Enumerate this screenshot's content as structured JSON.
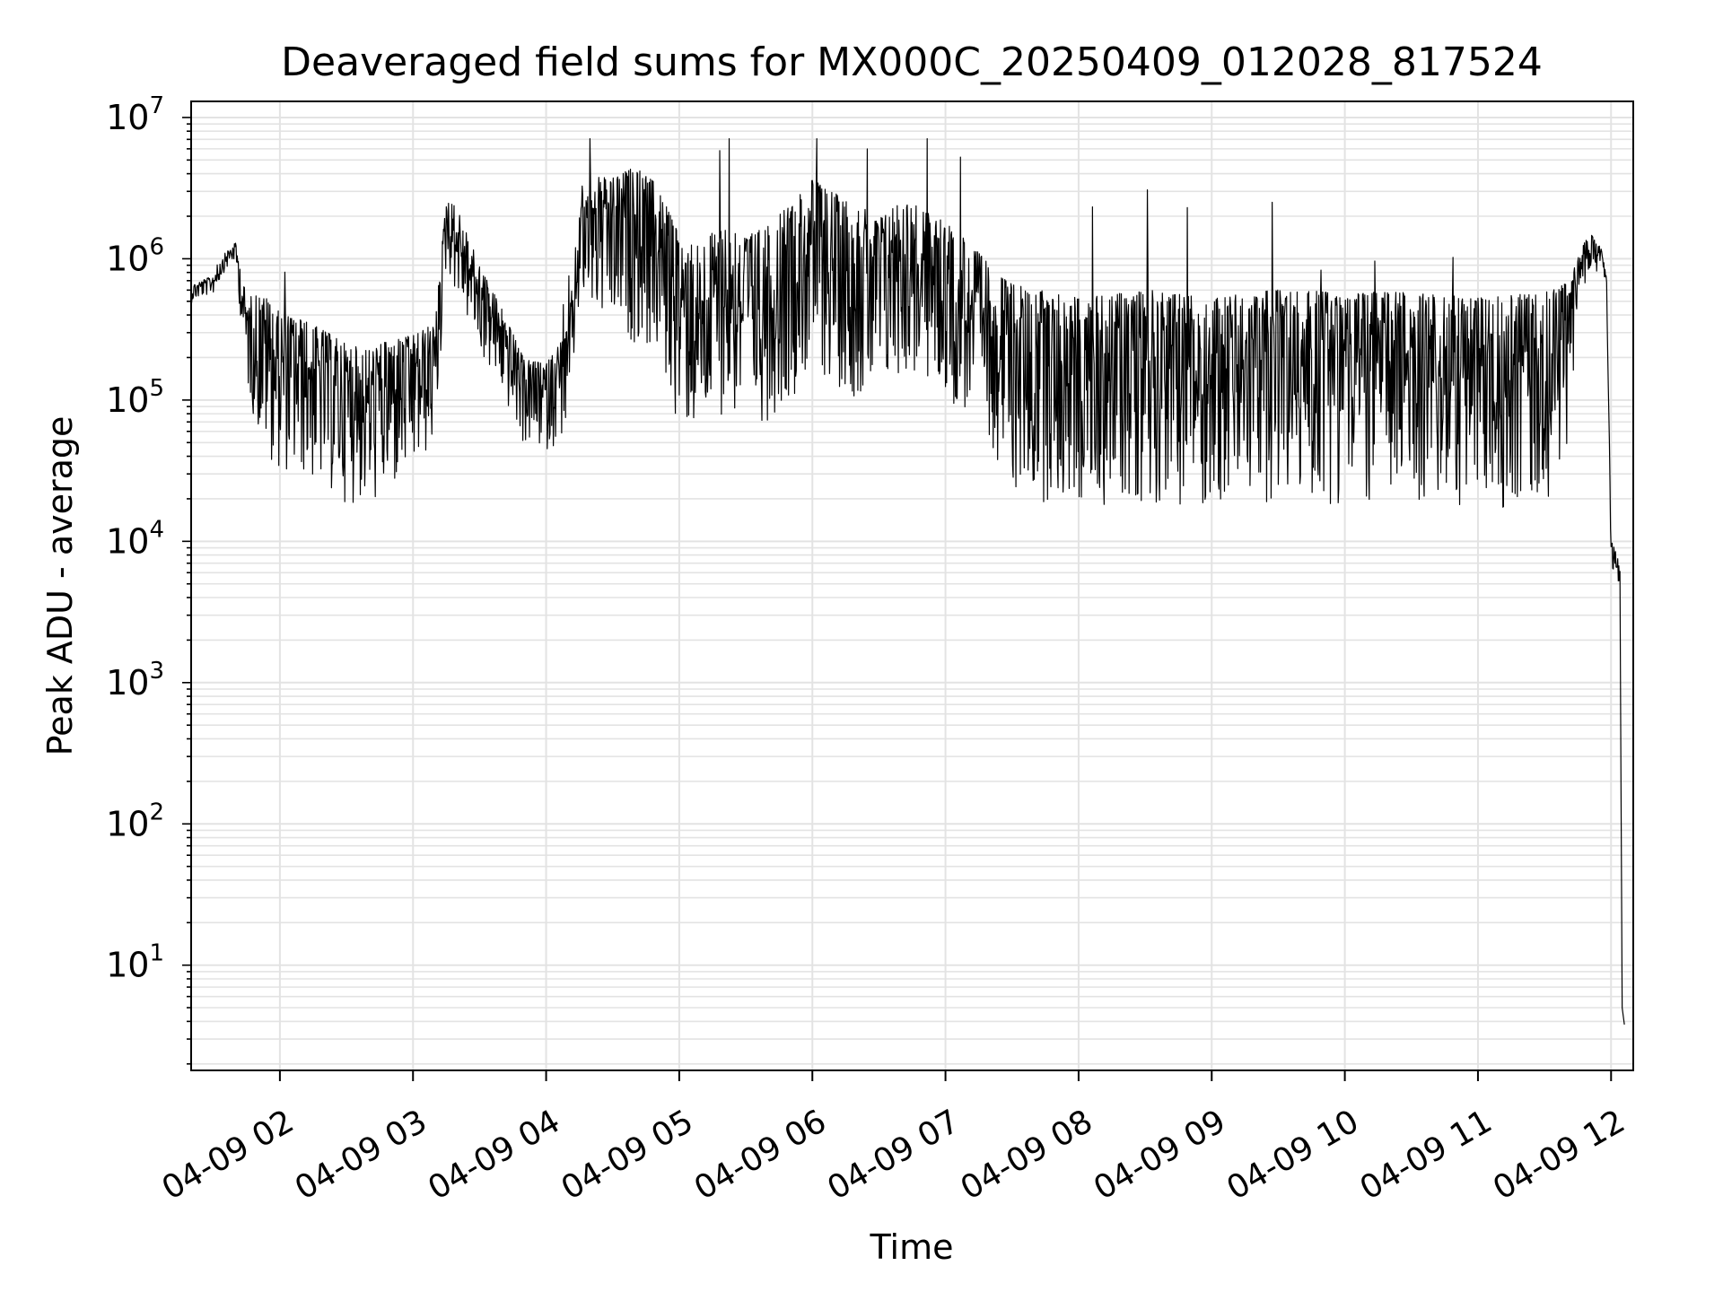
{
  "chart_data": {
    "type": "line",
    "title": "Deaveraged field sums for MX000C_20250409_012028_817524",
    "xlabel": "Time",
    "ylabel": "Peak ADU - average",
    "yscale": "log",
    "ylim": [
      1.8,
      13000000
    ],
    "xlim": [
      "2025-04-09 01:20",
      "2025-04-09 12:10"
    ],
    "x_ticks": [
      {
        "x": "2025-04-09 02:00",
        "label": "04-09 02"
      },
      {
        "x": "2025-04-09 03:00",
        "label": "04-09 03"
      },
      {
        "x": "2025-04-09 04:00",
        "label": "04-09 04"
      },
      {
        "x": "2025-04-09 05:00",
        "label": "04-09 05"
      },
      {
        "x": "2025-04-09 06:00",
        "label": "04-09 06"
      },
      {
        "x": "2025-04-09 07:00",
        "label": "04-09 07"
      },
      {
        "x": "2025-04-09 08:00",
        "label": "04-09 08"
      },
      {
        "x": "2025-04-09 09:00",
        "label": "04-09 09"
      },
      {
        "x": "2025-04-09 10:00",
        "label": "04-09 10"
      },
      {
        "x": "2025-04-09 11:00",
        "label": "04-09 11"
      },
      {
        "x": "2025-04-09 12:00",
        "label": "04-09 12"
      }
    ],
    "y_ticks": [
      {
        "value": 10,
        "base": "10",
        "exp": "1"
      },
      {
        "value": 100,
        "base": "10",
        "exp": "2"
      },
      {
        "value": 1000,
        "base": "10",
        "exp": "3"
      },
      {
        "value": 10000,
        "base": "10",
        "exp": "4"
      },
      {
        "value": 100000,
        "base": "10",
        "exp": "5"
      },
      {
        "value": 1000000,
        "base": "10",
        "exp": "6"
      },
      {
        "value": 10000000,
        "base": "10",
        "exp": "7"
      }
    ],
    "grid": true,
    "line_color": "#000000",
    "grid_color": "#e3e3e3",
    "series": [
      {
        "x": [
          "2025-04-09 01:20",
          "2025-04-09 01:25",
          "2025-04-09 01:30",
          "2025-04-09 01:35",
          "2025-04-09 01:40",
          "2025-04-09 01:45",
          "2025-04-09 01:50",
          "2025-04-09 01:55",
          "2025-04-09 02:00",
          "2025-04-09 02:10",
          "2025-04-09 02:20",
          "2025-04-09 02:30",
          "2025-04-09 02:40",
          "2025-04-09 02:50",
          "2025-04-09 03:00",
          "2025-04-09 03:10",
          "2025-04-09 03:15",
          "2025-04-09 03:20",
          "2025-04-09 03:30",
          "2025-04-09 03:40",
          "2025-04-09 03:50",
          "2025-04-09 04:00",
          "2025-04-09 04:10",
          "2025-04-09 04:15",
          "2025-04-09 04:20",
          "2025-04-09 04:30",
          "2025-04-09 04:40",
          "2025-04-09 04:50",
          "2025-04-09 05:00",
          "2025-04-09 05:10",
          "2025-04-09 05:20",
          "2025-04-09 05:30",
          "2025-04-09 05:40",
          "2025-04-09 05:50",
          "2025-04-09 06:00",
          "2025-04-09 06:10",
          "2025-04-09 06:20",
          "2025-04-09 06:30",
          "2025-04-09 06:40",
          "2025-04-09 06:50",
          "2025-04-09 07:00",
          "2025-04-09 07:10",
          "2025-04-09 07:20",
          "2025-04-09 07:30",
          "2025-04-09 08:00",
          "2025-04-09 08:30",
          "2025-04-09 09:00",
          "2025-04-09 09:30",
          "2025-04-09 10:00",
          "2025-04-09 10:30",
          "2025-04-09 11:00",
          "2025-04-09 11:30",
          "2025-04-09 11:40",
          "2025-04-09 11:45",
          "2025-04-09 11:50",
          "2025-04-09 11:55",
          "2025-04-09 11:58",
          "2025-04-09 12:00",
          "2025-04-09 12:02",
          "2025-04-09 12:04",
          "2025-04-09 12:05",
          "2025-04-09 12:06"
        ],
        "values": [
          600000,
          650000,
          700000,
          1000000,
          1200000,
          350000,
          300000,
          250000,
          200000,
          180000,
          150000,
          120000,
          110000,
          130000,
          150000,
          200000,
          2000000,
          1500000,
          600000,
          300000,
          130000,
          120000,
          200000,
          1500000,
          2000000,
          1800000,
          2000000,
          1500000,
          600000,
          500000,
          800000,
          600000,
          700000,
          1000000,
          1500000,
          1200000,
          1000000,
          800000,
          1200000,
          1000000,
          800000,
          600000,
          400000,
          250000,
          200000,
          230000,
          200000,
          230000,
          220000,
          220000,
          200000,
          220000,
          300000,
          800000,
          1300000,
          1100000,
          700000,
          9000,
          8000,
          6000,
          5,
          3.8
        ],
        "noise": [
          0.1,
          0.1,
          0.1,
          0.1,
          0.1,
          0.5,
          0.8,
          0.9,
          0.9,
          0.9,
          0.9,
          0.9,
          0.9,
          0.9,
          0.8,
          0.7,
          0.4,
          0.5,
          0.5,
          0.5,
          0.5,
          0.5,
          0.6,
          0.6,
          0.8,
          0.9,
          1,
          1,
          1.1,
          1.1,
          1.1,
          1.1,
          1.1,
          1.1,
          1.1,
          1.1,
          1.1,
          1.1,
          1,
          1,
          1,
          1,
          1,
          1.2,
          1.2,
          1.2,
          1.2,
          1.2,
          1.2,
          1.2,
          1.2,
          1.2,
          1,
          0.3,
          0.2,
          0.2,
          0.1,
          0.15,
          0.15,
          0.1,
          0,
          0
        ]
      }
    ]
  }
}
